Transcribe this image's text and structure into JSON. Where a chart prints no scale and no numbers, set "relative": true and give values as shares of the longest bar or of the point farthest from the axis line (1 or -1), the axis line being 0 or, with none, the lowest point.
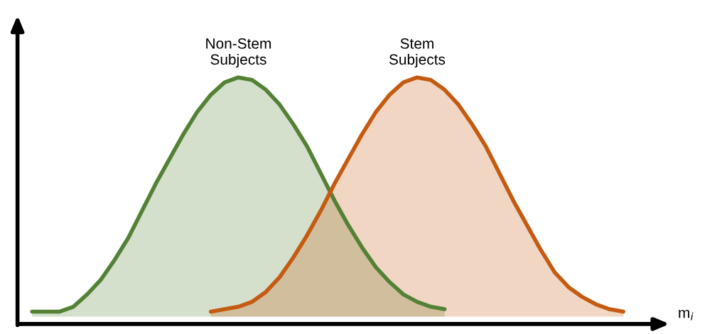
{
  "chart_data": {
    "type": "area",
    "relative": true,
    "xlabel": "m$_{i}$",
    "categories": [
      null,
      null,
      null,
      null,
      null,
      null,
      null,
      null,
      null,
      null,
      null,
      null,
      null,
      null,
      null,
      null,
      null,
      null,
      null,
      null,
      null,
      null,
      null,
      null,
      null,
      null,
      null,
      null,
      null,
      null,
      null,
      null,
      null,
      null,
      null,
      null,
      null,
      null,
      null,
      null,
      null,
      null,
      null,
      null
    ],
    "series": [
      {
        "name": "Non-Stem\nSubjects",
        "color": "#538135",
        "values": [
          0.05,
          0.05,
          0.05,
          0.07,
          0.12,
          0.18,
          0.26,
          0.35,
          0.46,
          0.57,
          0.67,
          0.77,
          0.86,
          0.93,
          0.98,
          1.0,
          0.99,
          0.95,
          0.89,
          0.81,
          0.72,
          0.61,
          0.5,
          0.4,
          0.31,
          0.23,
          0.17,
          0.12,
          0.09,
          0.07,
          0.06,
          null,
          null,
          null,
          null,
          null,
          null,
          null,
          null,
          null,
          null,
          null,
          null,
          null
        ]
      },
      {
        "name": "Stem\nSubjects",
        "color": "#c55a11",
        "values": [
          null,
          null,
          null,
          null,
          null,
          null,
          null,
          null,
          null,
          null,
          null,
          null,
          null,
          0.05,
          0.06,
          0.07,
          0.09,
          0.13,
          0.19,
          0.27,
          0.36,
          0.46,
          0.57,
          0.67,
          0.77,
          0.86,
          0.93,
          0.98,
          1.0,
          0.99,
          0.95,
          0.89,
          0.81,
          0.72,
          0.61,
          0.5,
          0.4,
          0.3,
          0.21,
          0.15,
          0.11,
          0.08,
          0.06,
          0.05
        ]
      }
    ],
    "legend": false
  }
}
